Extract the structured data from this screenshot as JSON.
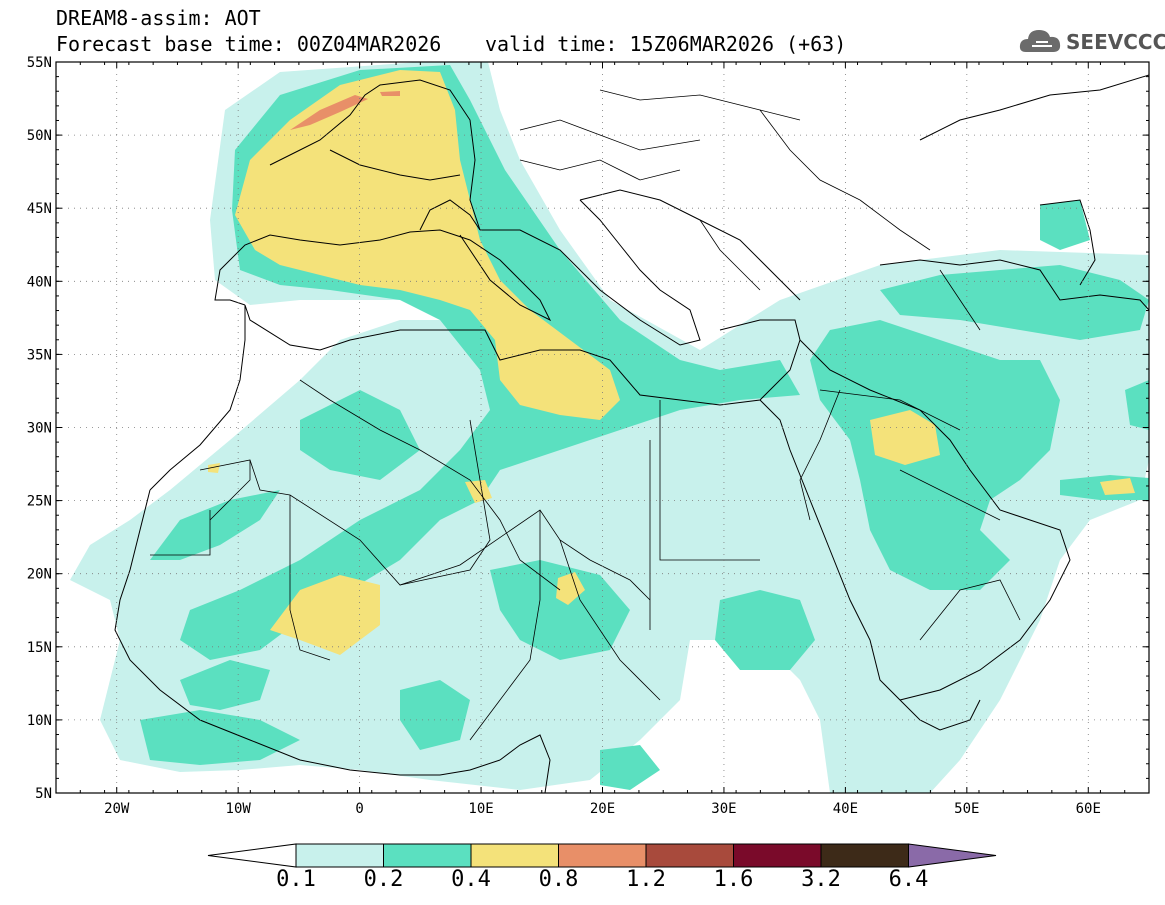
{
  "header": {
    "title": "DREAM8-assim: AOT",
    "base_time": "Forecast base time: 00Z04MAR2026",
    "valid_time": "valid time: 15Z06MAR2026 (+63)"
  },
  "logo": {
    "text": "SEEVCCC",
    "icon": "cloud-icon"
  },
  "map": {
    "lon_range": [
      -25,
      65
    ],
    "lat_range": [
      5,
      55
    ],
    "lat_labels": [
      "55N",
      "50N",
      "45N",
      "40N",
      "35N",
      "30N",
      "25N",
      "20N",
      "15N",
      "10N",
      "5N"
    ],
    "lon_labels": [
      "20W",
      "10W",
      "0",
      "10E",
      "20E",
      "30E",
      "40E",
      "50E",
      "60E"
    ],
    "grid": true
  },
  "colorbar": {
    "levels": [
      "0.1",
      "0.2",
      "0.4",
      "0.8",
      "1.2",
      "1.6",
      "3.2",
      "6.4"
    ],
    "colors": [
      "#ffffff",
      "#c8f1ec",
      "#5be0c0",
      "#f4e27a",
      "#e88f68",
      "#a84a3c",
      "#7a0a2a",
      "#3d2a18",
      "#8a6aa8"
    ]
  },
  "colors": {
    "c1": "#c8f1ec",
    "c2": "#5be0c0",
    "c3": "#f4e27a",
    "c4": "#e88f68"
  }
}
